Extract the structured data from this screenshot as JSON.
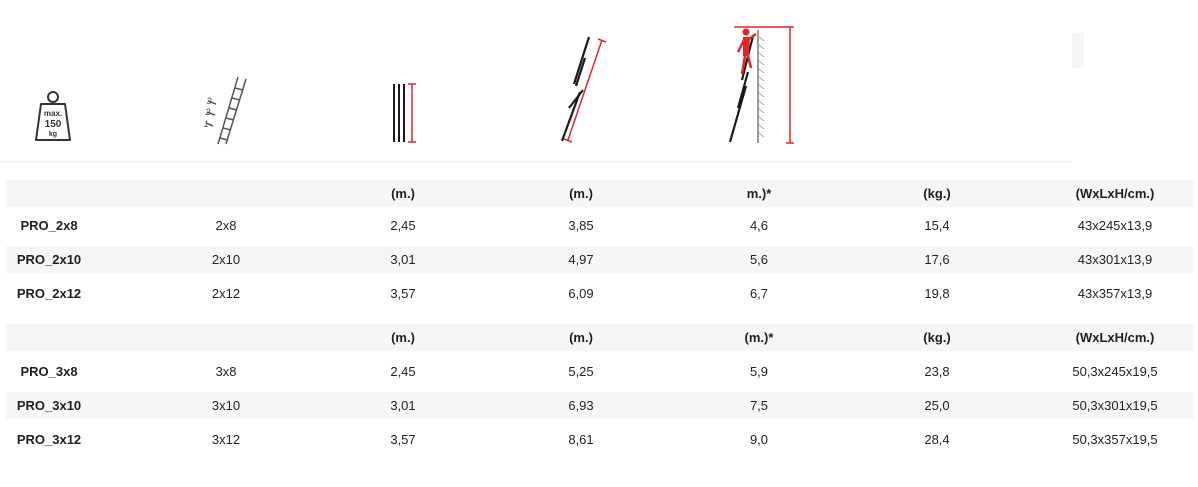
{
  "icons": {
    "max_weight": {
      "name": "weight-150kg-icon",
      "line1": "max.",
      "line2": "150",
      "line3": "kg"
    },
    "sections": {
      "name": "ladder-sections-icon",
      "label_3": "3",
      "label_2": "2",
      "label_1": "1"
    },
    "closed_height": {
      "name": "closed-height-icon"
    },
    "extended_length": {
      "name": "extended-length-icon"
    },
    "working_height": {
      "name": "working-height-icon"
    }
  },
  "tables": [
    {
      "header": [
        "",
        "",
        "(m.)",
        "(m.)",
        "m.)*",
        "(kg.)",
        "(WxLxH/cm.)"
      ],
      "rows": [
        [
          "PRO_2x8",
          "2x8",
          "2,45",
          "3,85",
          "4,6",
          "15,4",
          "43x245x13,9"
        ],
        [
          "PRO_2x10",
          "2x10",
          "3,01",
          "4,97",
          "5,6",
          "17,6",
          "43x301x13,9"
        ],
        [
          "PRO_2x12",
          "2x12",
          "3,57",
          "6,09",
          "6,7",
          "19,8",
          "43x357x13,9"
        ]
      ]
    },
    {
      "header": [
        "",
        "",
        "(m.)",
        "(m.)",
        "(m.)*",
        "(kg.)",
        "(WxLxH/cm.)"
      ],
      "rows": [
        [
          "PRO_3x8",
          "3x8",
          "2,45",
          "5,25",
          "5,9",
          "23,8",
          "50,3x245x19,5"
        ],
        [
          "PRO_3x10",
          "3x10",
          "3,01",
          "6,93",
          "7,5",
          "25,0",
          "50,3x301x19,5"
        ],
        [
          "PRO_3x12",
          "3x12",
          "3,57",
          "8,61",
          "9,0",
          "28,4",
          "50,3x357x19,5"
        ]
      ]
    }
  ],
  "colors": {
    "accent": "#e2252b",
    "shade": "#f6f6f6",
    "text": "#222222"
  }
}
